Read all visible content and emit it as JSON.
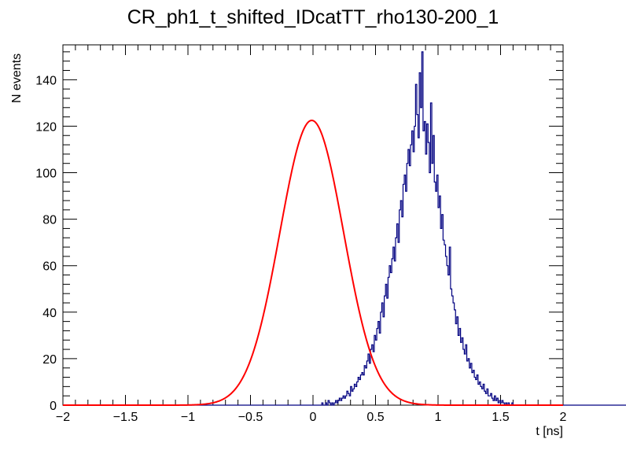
{
  "chart_data": {
    "type": "histogram",
    "title": "CR_ph1_t_shifted_IDcatTT_rho130-200_1",
    "xlabel": "t [ns]",
    "ylabel": "N events",
    "xlim": [
      -2,
      2
    ],
    "ylim": [
      0,
      155
    ],
    "grid": false,
    "legend": "none",
    "x_ticks": [
      -2,
      -1.5,
      -1,
      -0.5,
      0,
      0.5,
      1,
      1.5,
      2
    ],
    "x_tick_labels": [
      "−2",
      "−1.5",
      "−1",
      "−0.5",
      "0",
      "0.5",
      "1",
      "1.5",
      "2"
    ],
    "y_ticks": [
      0,
      20,
      40,
      60,
      80,
      100,
      120,
      140
    ],
    "y_tick_labels": [
      "0",
      "20",
      "40",
      "60",
      "80",
      "100",
      "120",
      "140"
    ],
    "bin_width": 0.01,
    "bin_start": -2,
    "series": [
      {
        "kind": "histogram",
        "color": "#000080",
        "counts": [
          0,
          0,
          0,
          0,
          0,
          0,
          0,
          0,
          0,
          0,
          0,
          0,
          0,
          0,
          0,
          0,
          0,
          0,
          0,
          0,
          0,
          0,
          0,
          0,
          0,
          0,
          0,
          0,
          0,
          0,
          0,
          0,
          0,
          0,
          0,
          0,
          0,
          0,
          0,
          0,
          0,
          0,
          0,
          0,
          0,
          0,
          0,
          0,
          0,
          0,
          0,
          0,
          0,
          0,
          0,
          0,
          0,
          0,
          0,
          0,
          0,
          0,
          0,
          0,
          0,
          0,
          0,
          0,
          0,
          0,
          0,
          0,
          0,
          0,
          0,
          0,
          0,
          0,
          0,
          0,
          0,
          0,
          0,
          0,
          0,
          0,
          0,
          0,
          0,
          0,
          0,
          0,
          0,
          0,
          0,
          0,
          0,
          0,
          0,
          0,
          0,
          0,
          0,
          0,
          0,
          0,
          0,
          0,
          0,
          0,
          0,
          0,
          0,
          0,
          0,
          0,
          0,
          0,
          0,
          0,
          0,
          0,
          0,
          0,
          0,
          0,
          0,
          0,
          0,
          0,
          0,
          0,
          0,
          0,
          0,
          0,
          0,
          0,
          0,
          0,
          0,
          0,
          0,
          0,
          0,
          0,
          0,
          0,
          0,
          0,
          0,
          0,
          0,
          0,
          0,
          0,
          0,
          0,
          0,
          0,
          0,
          0,
          0,
          0,
          0,
          0,
          0,
          0,
          0,
          0,
          0,
          0,
          0,
          0,
          0,
          0,
          0,
          0,
          0,
          0,
          0,
          0,
          0,
          0,
          0,
          0,
          0,
          0,
          0,
          0,
          0,
          0,
          0,
          0,
          0,
          0,
          0,
          0,
          0,
          0,
          0,
          0,
          0,
          0,
          0,
          0,
          0,
          1,
          0,
          0,
          1,
          0,
          2,
          1,
          0,
          1,
          0,
          1,
          2,
          1,
          2,
          3,
          2,
          3,
          4,
          3,
          4,
          6,
          5,
          4,
          8,
          6,
          7,
          9,
          8,
          10,
          12,
          11,
          13,
          14,
          13,
          17,
          16,
          19,
          22,
          18,
          24,
          26,
          23,
          30,
          28,
          33,
          36,
          31,
          40,
          44,
          38,
          47,
          52,
          46,
          55,
          60,
          57,
          63,
          68,
          62,
          72,
          78,
          70,
          84,
          88,
          81,
          95,
          99,
          92,
          104,
          110,
          103,
          112,
          118,
          109,
          120,
          138,
          125,
          115,
          143,
          128,
          152,
          118,
          122,
          108,
          121,
          113,
          100,
          130,
          104,
          116,
          96,
          92,
          99,
          85,
          90,
          76,
          82,
          71,
          69,
          64,
          60,
          56,
          68,
          50,
          47,
          44,
          41,
          35,
          38,
          30,
          33,
          27,
          29,
          24,
          22,
          26,
          19,
          20,
          16,
          18,
          14,
          15,
          12,
          11,
          13,
          9,
          10,
          8,
          7,
          9,
          6,
          5,
          7,
          4,
          4,
          5,
          3,
          2,
          4,
          2,
          3,
          1,
          2,
          1,
          2,
          1,
          0,
          1,
          0,
          1,
          0,
          0,
          1,
          0,
          0,
          0,
          0,
          0,
          0,
          0,
          0,
          0,
          0,
          0,
          0,
          0,
          0,
          0,
          0,
          0,
          0,
          0,
          0,
          0,
          0,
          0,
          0,
          0,
          0,
          0,
          0,
          0,
          0,
          0,
          0,
          0,
          0,
          0,
          0,
          0,
          0,
          0,
          0,
          0,
          0,
          0,
          0,
          0,
          0,
          0,
          0,
          0,
          0,
          0,
          0,
          0,
          0,
          0,
          0,
          0,
          0,
          0,
          0,
          0,
          0,
          0,
          0,
          0,
          0,
          0,
          0,
          0,
          0,
          0,
          0,
          0,
          0,
          0,
          0,
          0,
          0,
          0,
          0,
          0,
          0,
          0,
          0,
          0,
          0,
          0,
          0,
          0,
          0,
          0,
          0,
          0,
          0,
          0,
          0,
          0,
          0,
          0,
          0,
          0,
          0,
          0,
          0,
          0,
          0,
          0,
          0,
          0,
          0,
          0,
          0,
          0,
          0,
          0,
          0,
          0,
          0,
          0,
          0,
          0,
          0,
          0
        ]
      },
      {
        "kind": "fit",
        "shape": "gaussian",
        "color": "#ff0000",
        "amplitude": 122.5,
        "mean": -0.01,
        "sigma": 0.255
      }
    ]
  }
}
